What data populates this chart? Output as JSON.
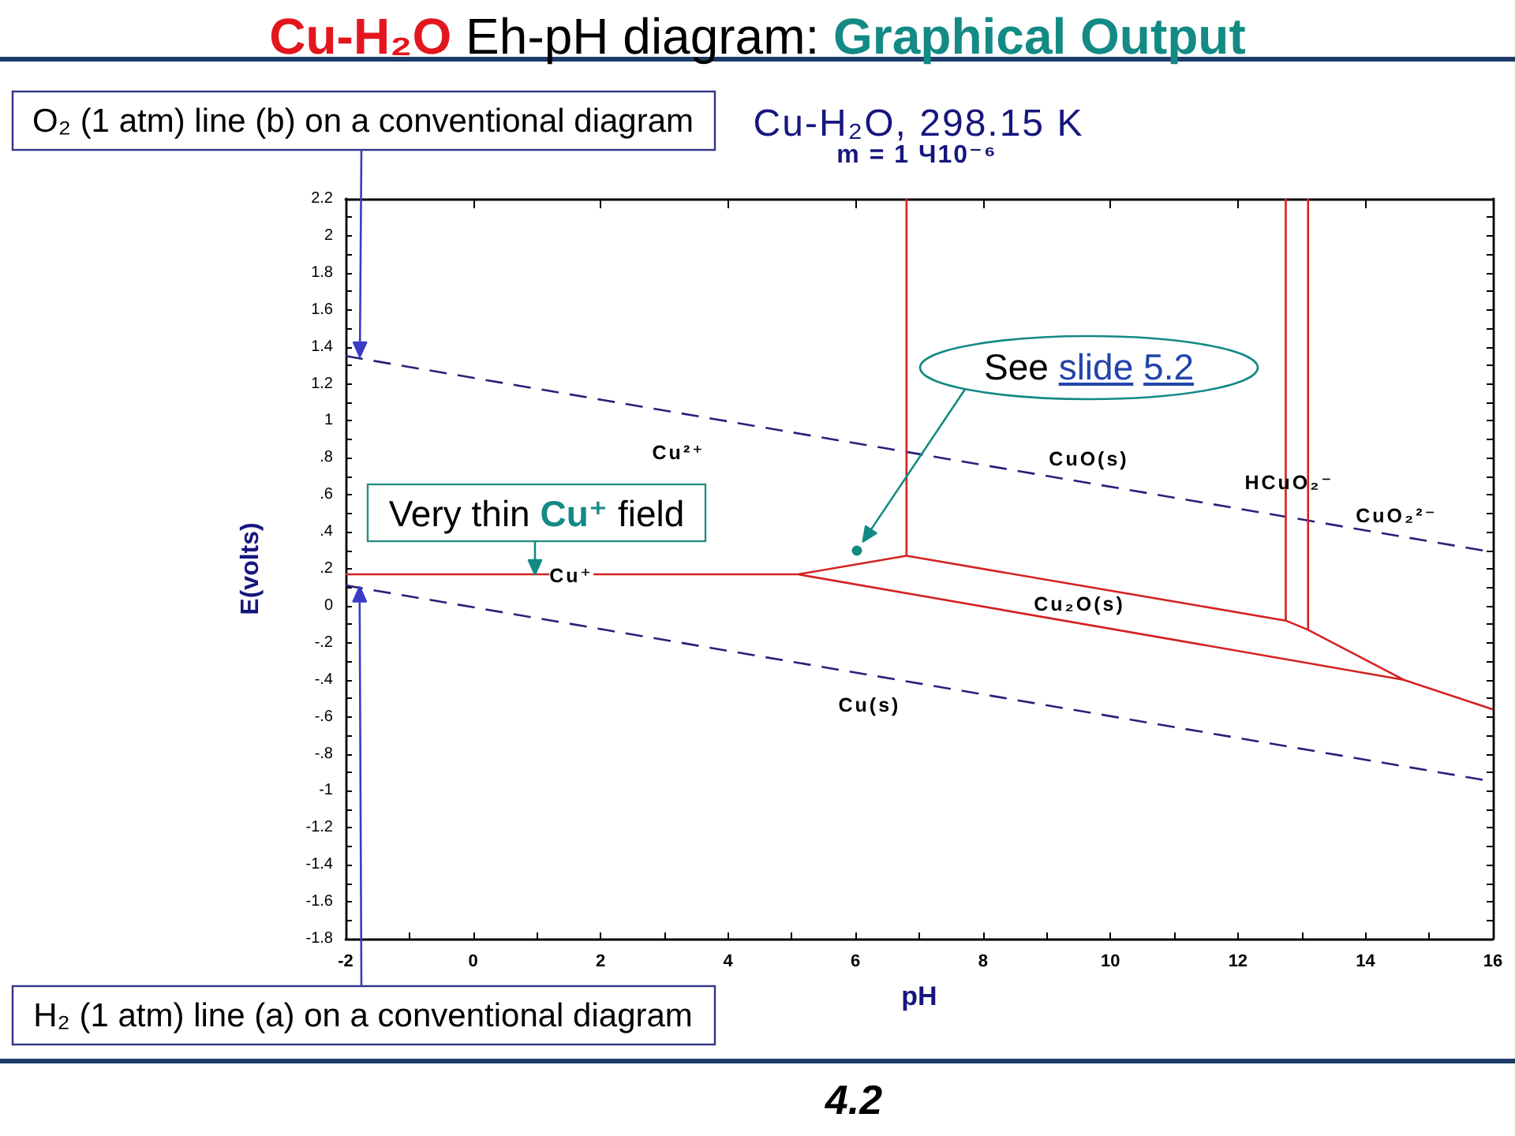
{
  "chart_data": {
    "type": "line",
    "title": "Cu-H₂O Eh-pH diagram: Graphical Output",
    "subtitle": "Cu-H₂O, 298.15 K",
    "xlabel": "pH",
    "ylabel": "E(volts)",
    "marker": "none",
    "xlim": [
      -2,
      16
    ],
    "xticks": [
      -2,
      {
        "value": -1,
        "label": null
      },
      0,
      {
        "value": 1,
        "label": null
      },
      2,
      {
        "value": 3,
        "label": null
      },
      4,
      {
        "value": 5,
        "label": null
      },
      6,
      {
        "value": 7,
        "label": null
      },
      8,
      {
        "value": 9,
        "label": null
      },
      10,
      {
        "value": 11,
        "label": null
      },
      12,
      {
        "value": 13,
        "label": null
      },
      14,
      {
        "value": 15,
        "label": null
      },
      16
    ],
    "ylim": [
      -1.8,
      2.2
    ],
    "yticks": [
      -1.8,
      {
        "value": -1.7,
        "label": null
      },
      -1.6,
      {
        "value": -1.5,
        "label": null
      },
      -1.4,
      {
        "value": -1.3,
        "label": null
      },
      -1.2,
      {
        "value": -1.1,
        "label": null
      },
      -1,
      {
        "value": -0.9,
        "label": null
      },
      {
        "value": -0.8,
        "label": "-.8"
      },
      {
        "value": -0.7,
        "label": null
      },
      {
        "value": -0.6,
        "label": "-.6"
      },
      {
        "value": -0.5,
        "label": null
      },
      {
        "value": -0.4,
        "label": "-.4"
      },
      {
        "value": -0.3,
        "label": null
      },
      {
        "value": -0.2,
        "label": "-.2"
      },
      {
        "value": -0.1,
        "label": null
      },
      0,
      {
        "value": 0.1,
        "label": null
      },
      {
        "value": 0.2,
        "label": ".2"
      },
      {
        "value": 0.3,
        "label": null
      },
      {
        "value": 0.4,
        "label": ".4"
      },
      {
        "value": 0.5,
        "label": null
      },
      {
        "value": 0.6,
        "label": ".6"
      },
      {
        "value": 0.7,
        "label": null
      },
      {
        "value": 0.8,
        "label": ".8"
      },
      {
        "value": 0.9,
        "label": null
      },
      1,
      {
        "value": 1.1,
        "label": null
      },
      1.2,
      {
        "value": 1.3,
        "label": null
      },
      1.4,
      {
        "value": 1.5,
        "label": null
      },
      1.6,
      {
        "value": 1.7,
        "label": null
      },
      1.8,
      {
        "value": 1.9,
        "label": null
      },
      2,
      {
        "value": 2.1,
        "label": null
      },
      2.2
    ],
    "series": [
      {
        "color": "#2b1f7a",
        "line_style": "dashed",
        "x": [
          -2,
          16
        ],
        "values": [
          1.35,
          0.29
        ]
      },
      {
        "color": "#2b1f7a",
        "line_style": "dashed",
        "x": [
          -2,
          16
        ],
        "values": [
          0.11,
          -0.95
        ]
      },
      {
        "color": "#d42222",
        "line_style": "solid",
        "x": [
          -2,
          5.1,
          14.6,
          16,
          null,
          5.1,
          6.8,
          6.8,
          null,
          6.8,
          12.75,
          12.75,
          null,
          12.75,
          13.1,
          13.1,
          null,
          13.1,
          14.6
        ],
        "values": [
          0.17,
          0.17,
          -0.4,
          -0.56,
          null,
          0.17,
          0.27,
          2.2,
          null,
          0.27,
          -0.08,
          2.2,
          null,
          -0.08,
          -0.13,
          2.2,
          null,
          -0.13,
          -0.4
        ]
      }
    ],
    "annotations": [
      "Cu²⁺",
      "CuO(s)",
      "HCuO₂⁻",
      "CuO₂²⁻",
      "Cu⁺",
      "Cu₂O(s)",
      "Cu(s)",
      "O₂ (1 atm) line (b) on a conventional diagram",
      {
        "text": "H₂ (1 atm) line (a) on a conventional diagram",
        "x": -1.78,
        "y": 0.1
      },
      {
        "text": "Very thin Cu⁺ field",
        "x": 0.97,
        "y": 0.17
      },
      "See slide 5.2",
      "m = 1 Ч10⁻⁶",
      "4.2"
    ]
  }
}
